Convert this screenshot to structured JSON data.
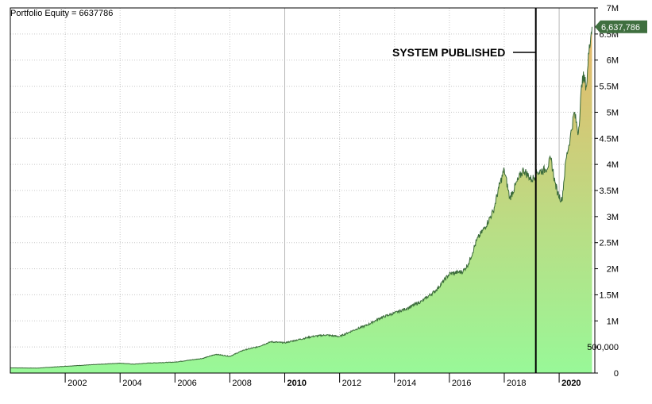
{
  "header": {
    "equity_label": "Portfolio Equity = 6637786",
    "current_value_tag": "6,637,786"
  },
  "annotation": {
    "text": "SYSTEM PUBLISHED",
    "date": 2019.15
  },
  "colors": {
    "area_low": "#98f898",
    "area_high": "#e8b86a",
    "line": "#3a6b3a",
    "grid": "#c8c8c8",
    "marker": "#000000",
    "tag_bg": "#3f6f3f",
    "tag_text": "#ffffff"
  },
  "chart_data": {
    "type": "area",
    "title": "Portfolio Equity = 6637786",
    "xlabel": "",
    "ylabel": "",
    "xlim": [
      2000.0,
      2021.3
    ],
    "ylim": [
      0,
      7000000
    ],
    "grid": true,
    "bold_x_ticks": [
      "2010",
      "2020"
    ],
    "y_ticks": [
      {
        "value": 0,
        "label": "0"
      },
      {
        "value": 500000,
        "label": "500,000"
      },
      {
        "value": 1000000,
        "label": "1M"
      },
      {
        "value": 1500000,
        "label": "1.5M"
      },
      {
        "value": 2000000,
        "label": "2M"
      },
      {
        "value": 2500000,
        "label": "2.5M"
      },
      {
        "value": 3000000,
        "label": "3M"
      },
      {
        "value": 3500000,
        "label": "3.5M"
      },
      {
        "value": 4000000,
        "label": "4M"
      },
      {
        "value": 4500000,
        "label": "4.5M"
      },
      {
        "value": 5000000,
        "label": "5M"
      },
      {
        "value": 5500000,
        "label": "5.5M"
      },
      {
        "value": 6000000,
        "label": "6M"
      },
      {
        "value": 6500000,
        "label": "6.5M"
      },
      {
        "value": 7000000,
        "label": "7M"
      }
    ],
    "x_ticks": [
      {
        "value": 2002,
        "label": "2002"
      },
      {
        "value": 2004,
        "label": "2004"
      },
      {
        "value": 2006,
        "label": "2006"
      },
      {
        "value": 2008,
        "label": "2008"
      },
      {
        "value": 2010,
        "label": "2010"
      },
      {
        "value": 2012,
        "label": "2012"
      },
      {
        "value": 2014,
        "label": "2014"
      },
      {
        "value": 2016,
        "label": "2016"
      },
      {
        "value": 2018,
        "label": "2018"
      },
      {
        "value": 2020,
        "label": "2020"
      }
    ],
    "series": [
      {
        "name": "Portfolio Equity",
        "points": [
          [
            2000.0,
            100000
          ],
          [
            2001.0,
            95000
          ],
          [
            2002.0,
            130000
          ],
          [
            2003.0,
            160000
          ],
          [
            2004.0,
            190000
          ],
          [
            2004.5,
            170000
          ],
          [
            2005.0,
            190000
          ],
          [
            2006.0,
            210000
          ],
          [
            2007.0,
            280000
          ],
          [
            2007.5,
            360000
          ],
          [
            2008.0,
            320000
          ],
          [
            2008.5,
            440000
          ],
          [
            2009.0,
            500000
          ],
          [
            2009.5,
            600000
          ],
          [
            2010.0,
            580000
          ],
          [
            2010.5,
            640000
          ],
          [
            2011.0,
            700000
          ],
          [
            2011.5,
            730000
          ],
          [
            2012.0,
            700000
          ],
          [
            2012.5,
            820000
          ],
          [
            2013.0,
            920000
          ],
          [
            2013.5,
            1060000
          ],
          [
            2014.0,
            1150000
          ],
          [
            2014.5,
            1250000
          ],
          [
            2015.0,
            1380000
          ],
          [
            2015.5,
            1580000
          ],
          [
            2016.0,
            1900000
          ],
          [
            2016.5,
            1950000
          ],
          [
            2016.7,
            2100000
          ],
          [
            2017.0,
            2550000
          ],
          [
            2017.3,
            2800000
          ],
          [
            2017.6,
            3100000
          ],
          [
            2017.8,
            3550000
          ],
          [
            2018.0,
            3900000
          ],
          [
            2018.2,
            3350000
          ],
          [
            2018.5,
            3700000
          ],
          [
            2018.7,
            3900000
          ],
          [
            2019.0,
            3700000
          ],
          [
            2019.2,
            3850000
          ],
          [
            2019.5,
            3900000
          ],
          [
            2019.7,
            4100000
          ],
          [
            2019.85,
            3650000
          ],
          [
            2019.95,
            3450000
          ],
          [
            2020.1,
            3300000
          ],
          [
            2020.25,
            4100000
          ],
          [
            2020.4,
            4500000
          ],
          [
            2020.55,
            5000000
          ],
          [
            2020.7,
            4600000
          ],
          [
            2020.85,
            5700000
          ],
          [
            2021.0,
            5500000
          ],
          [
            2021.1,
            6300000
          ],
          [
            2021.2,
            6637786
          ]
        ]
      }
    ]
  }
}
